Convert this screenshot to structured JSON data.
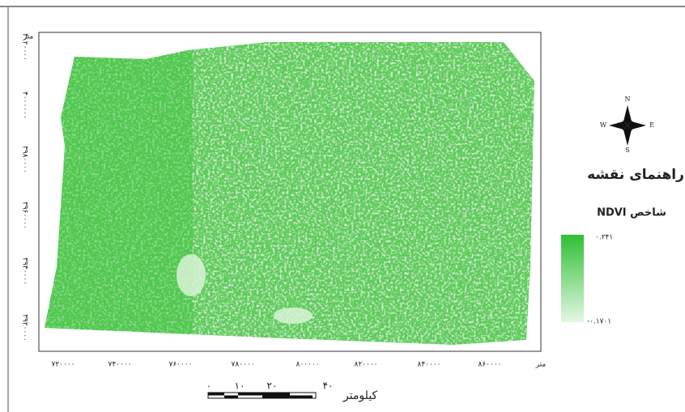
{
  "map": {
    "y_axis": {
      "unit": "متر",
      "ticks": [
        "۴۰۲۰۰۰۰",
        "۴۰۰۰۰۰۰",
        "۳۹۸۰۰۰۰",
        "۳۹۶۰۰۰۰",
        "۳۹۴۰۰۰۰",
        "۳۹۲۰۰۰۰"
      ]
    },
    "x_axis": {
      "unit": "متر",
      "ticks": [
        "۷۲۰۰۰۰",
        "۷۴۰۰۰۰",
        "۷۶۰۰۰۰",
        "۷۸۰۰۰۰",
        "۸۰۰۰۰۰",
        "۸۲۰۰۰۰",
        "۸۴۰۰۰۰",
        "۸۶۰۰۰۰"
      ]
    },
    "compass": {
      "north": "N",
      "east": "E",
      "south": "S",
      "west": "W"
    },
    "legend": {
      "title": "راهنمای نقشه",
      "index": "شاخص NDVI",
      "max_label": "۰.۲۴۱",
      "min_label": "-۰.۱۷۰۱"
    },
    "scale_bar": {
      "labels": [
        "۰",
        "۱۰",
        "۲۰",
        "۴۰"
      ],
      "unit": "کیلومتر"
    }
  }
}
